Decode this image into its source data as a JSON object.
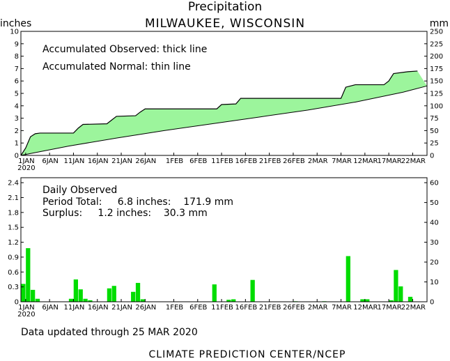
{
  "header": {
    "title": "Precipitation",
    "subtitle": "MILWAUKEE, WISCONSIN",
    "left_unit": "inches",
    "right_unit": "mm"
  },
  "chart_data": [
    {
      "type": "area",
      "name": "accumulated",
      "annotations": [
        "Accumulated Observed: thick line",
        "Accumulated Normal: thin line"
      ],
      "x_tick_labels": [
        "1JAN",
        "6JAN",
        "11JAN",
        "16JAN",
        "21JAN",
        "26JAN",
        "1FEB",
        "6FEB",
        "11FEB",
        "16FEB",
        "21FEB",
        "26FEB",
        "2MAR",
        "7MAR",
        "12MAR",
        "17MAR",
        "22MAR"
      ],
      "x_tick_days": [
        1,
        6,
        11,
        16,
        21,
        26,
        32,
        37,
        42,
        47,
        52,
        57,
        62,
        67,
        72,
        77,
        82
      ],
      "x_year_label": "2020",
      "xlim": [
        0,
        85
      ],
      "ylim": [
        0,
        10
      ],
      "y_ticks": [
        0,
        1,
        2,
        3,
        4,
        5,
        6,
        7,
        8,
        9,
        10
      ],
      "y2lim": [
        0,
        250
      ],
      "y2_ticks": [
        0,
        25,
        50,
        75,
        100,
        125,
        150,
        175,
        200,
        225,
        250
      ],
      "fill_color": "#9cf59c",
      "observed": {
        "x": [
          0,
          1,
          2,
          3,
          4,
          11,
          12,
          13,
          18,
          19,
          20,
          24,
          25,
          26,
          41,
          42,
          45,
          46,
          67,
          68,
          70,
          76,
          77,
          78,
          81,
          83
        ],
        "y": [
          0,
          0.6,
          1.5,
          1.75,
          1.8,
          1.8,
          2.2,
          2.5,
          2.55,
          2.85,
          3.15,
          3.2,
          3.5,
          3.75,
          3.75,
          4.1,
          4.15,
          4.6,
          4.6,
          5.5,
          5.7,
          5.7,
          6.0,
          6.6,
          6.75,
          6.8
        ]
      },
      "normal": {
        "x": [
          0,
          10,
          20,
          30,
          40,
          50,
          60,
          70,
          80,
          85
        ],
        "y": [
          0,
          0.75,
          1.4,
          2.0,
          2.55,
          3.1,
          3.65,
          4.3,
          5.1,
          5.6
        ]
      }
    },
    {
      "type": "bar",
      "name": "daily",
      "annotations": [
        "Daily Observed",
        "Period Total:     6.8 inches:    171.9 mm",
        "Surplus:     1.2 inches:    30.3 mm"
      ],
      "x_tick_labels": [
        "1JAN",
        "6JAN",
        "11JAN",
        "16JAN",
        "21JAN",
        "26JAN",
        "1FEB",
        "6FEB",
        "11FEB",
        "16FEB",
        "21FEB",
        "26FEB",
        "2MAR",
        "7MAR",
        "12MAR",
        "17MAR",
        "22MAR"
      ],
      "x_tick_days": [
        1,
        6,
        11,
        16,
        21,
        26,
        32,
        37,
        42,
        47,
        52,
        57,
        62,
        67,
        72,
        77,
        82
      ],
      "x_year_label": "2020",
      "xlim": [
        0,
        85
      ],
      "ylim": [
        0,
        2.5
      ],
      "y_tick_labels": [
        "0",
        "0.3",
        "0.6",
        "0.9",
        "1.2",
        "1.5",
        "1.8",
        "2.1",
        "2.4"
      ],
      "y2lim": [
        0,
        62.5
      ],
      "y2_tick_labels": [
        "0",
        "10",
        "20",
        "30",
        "40",
        "50",
        "60"
      ],
      "bar_color": "#00dd00",
      "days": [
        0,
        1,
        2,
        3,
        10,
        11,
        12,
        13,
        14,
        18,
        19,
        23,
        24,
        25,
        40,
        43,
        44,
        48,
        57,
        63,
        68,
        71,
        72,
        77,
        78,
        79,
        81
      ],
      "values": [
        0.36,
        1.08,
        0.24,
        0.06,
        0.06,
        0.45,
        0.25,
        0.06,
        0.03,
        0.27,
        0.32,
        0.2,
        0.38,
        0.05,
        0.35,
        0.04,
        0.05,
        0.44,
        0.01,
        0.01,
        0.92,
        0.05,
        0.05,
        0.03,
        0.64,
        0.31,
        0.1
      ]
    }
  ],
  "footer": {
    "updated": "Data updated through 25 MAR 2020",
    "credit": "CLIMATE PREDICTION CENTER/NCEP"
  }
}
